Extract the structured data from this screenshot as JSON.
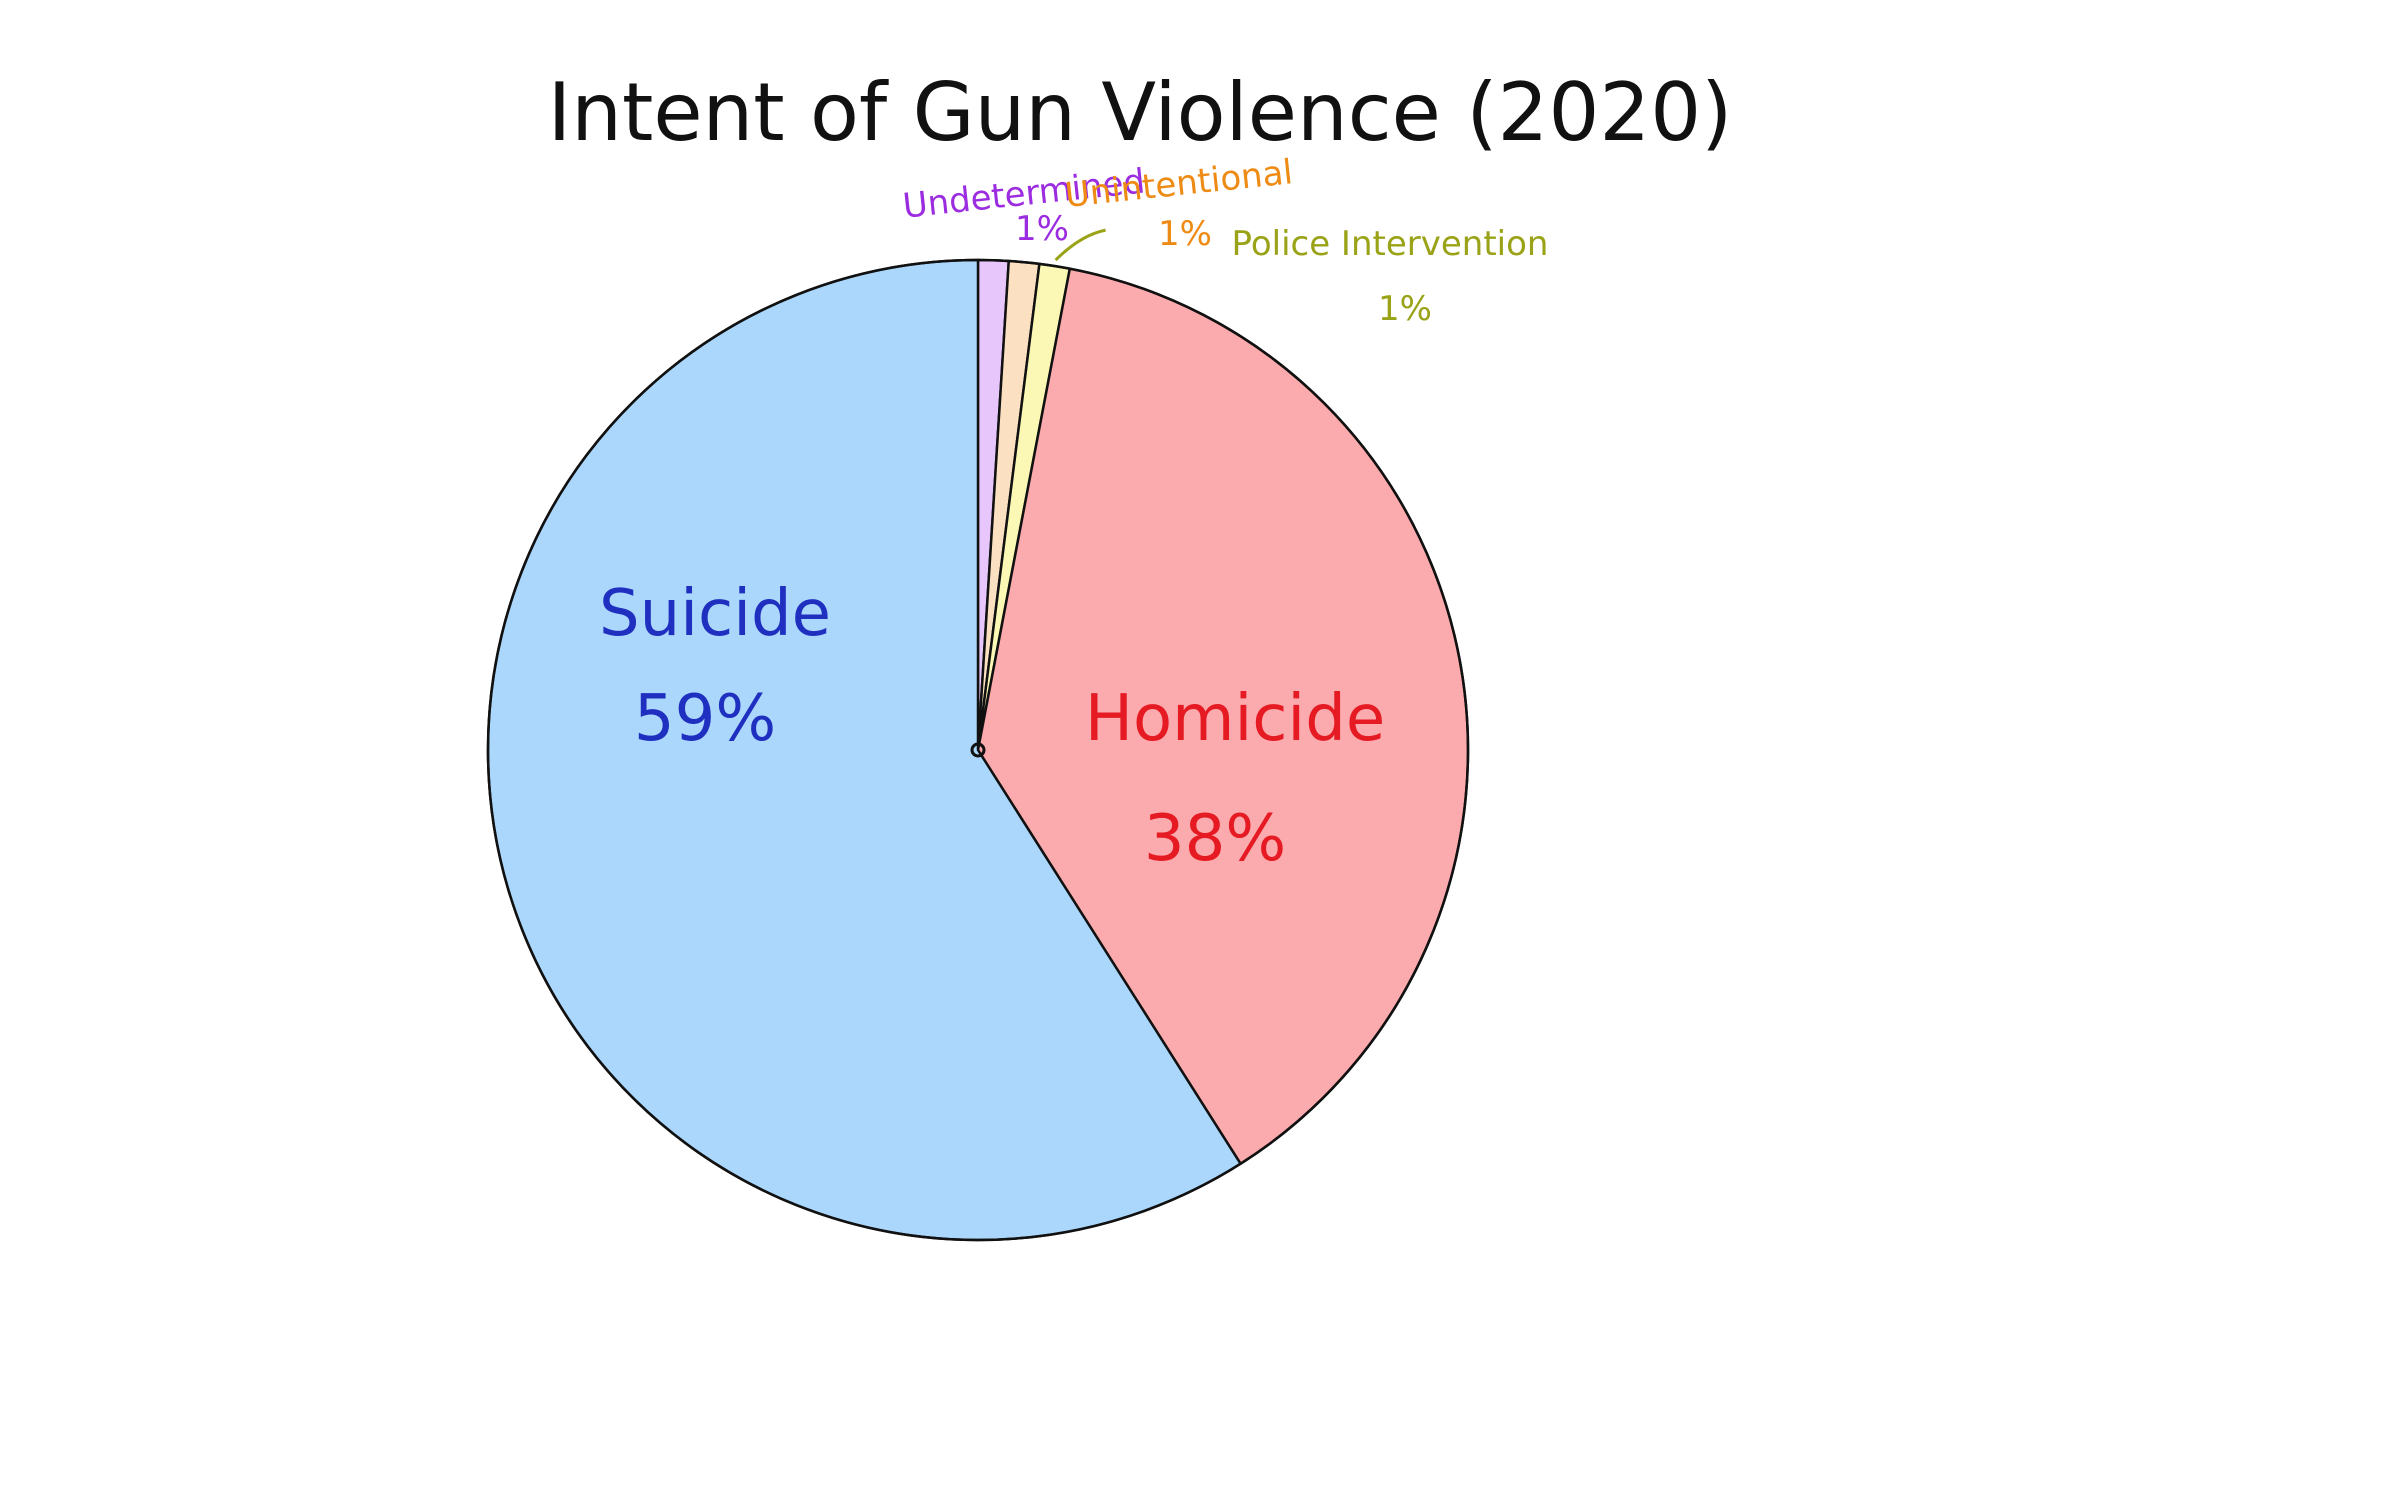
{
  "chart_data": {
    "type": "pie",
    "title": "Intent of Gun Violence (2020)",
    "slices": [
      {
        "name": "Suicide",
        "value": 59,
        "label": "59%",
        "fill": "#aad7fb",
        "text_color": "#1f2fbf"
      },
      {
        "name": "Undetermined",
        "value": 1,
        "label": "1%",
        "fill": "#e6c6fb",
        "text_color": "#9b2ce0"
      },
      {
        "name": "Unintentional",
        "value": 1,
        "label": "1%",
        "fill": "#fbe1c2",
        "text_color": "#ee8b14"
      },
      {
        "name": "Police Intervention",
        "value": 1,
        "label": "1%",
        "fill": "#fbf7b4",
        "text_color": "#9aa317"
      },
      {
        "name": "Homicide",
        "value": 38,
        "label": "38%",
        "fill": "#fbaaad",
        "text_color": "#e51a22"
      }
    ]
  }
}
